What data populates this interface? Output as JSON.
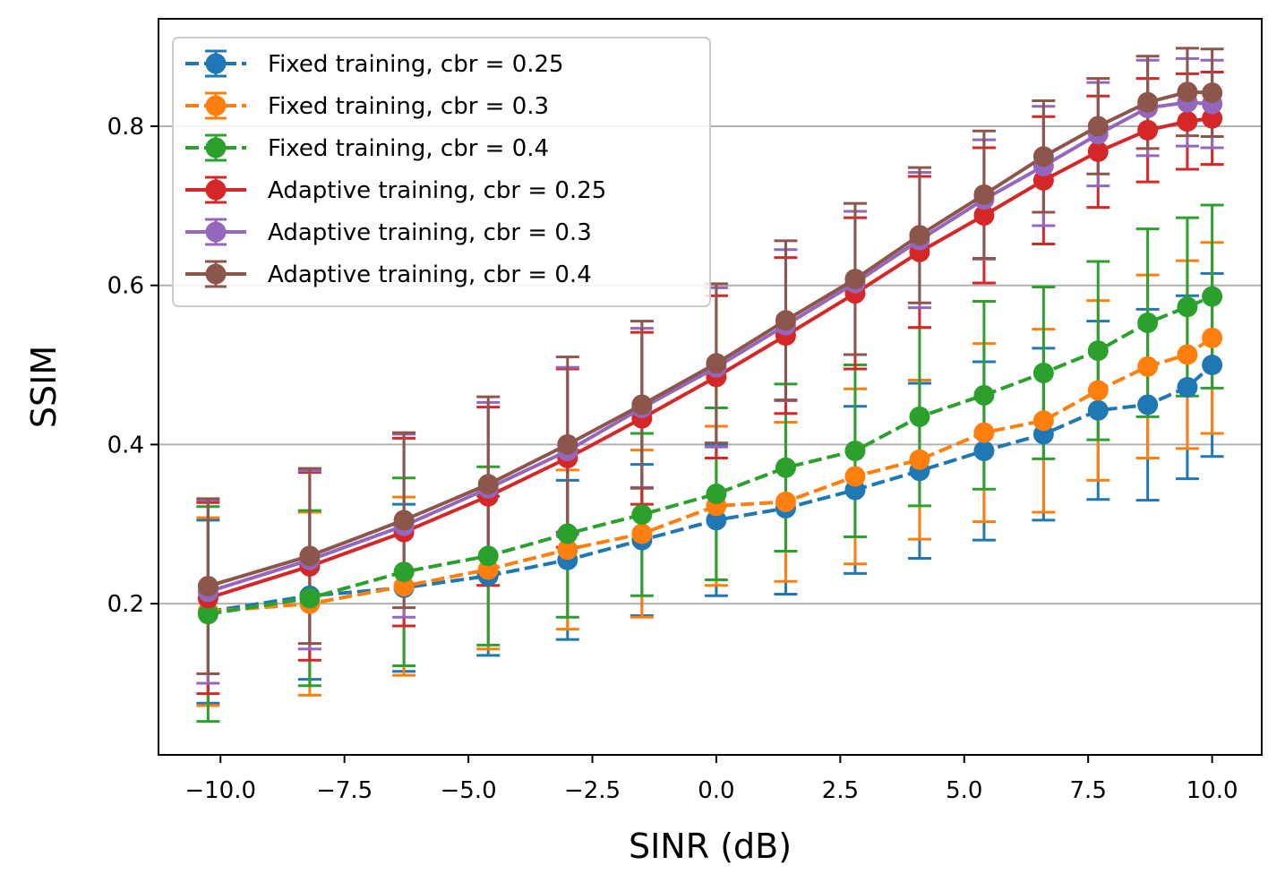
{
  "chart_data": {
    "type": "line",
    "title": "",
    "xlabel": "SINR (dB)",
    "ylabel": "SSIM",
    "xlim": [
      -11.25,
      11.0
    ],
    "ylim": [
      0.01,
      0.935
    ],
    "xticks": [
      -10.0,
      -7.5,
      -5.0,
      -2.5,
      0.0,
      2.5,
      5.0,
      7.5,
      10.0
    ],
    "xtick_labels": [
      "−10.0",
      "−7.5",
      "−5.0",
      "−2.5",
      "0.0",
      "2.5",
      "5.0",
      "7.5",
      "10.0"
    ],
    "yticks": [
      0.2,
      0.4,
      0.6,
      0.8
    ],
    "ytick_labels": [
      "0.2",
      "0.4",
      "0.6",
      "0.8"
    ],
    "grid": "y-major",
    "legend_position": "upper-left",
    "x": [
      -10.25,
      -8.2,
      -6.3,
      -4.6,
      -3.0,
      -1.5,
      0.0,
      1.4,
      2.8,
      4.1,
      5.4,
      6.6,
      7.7,
      8.7,
      9.5,
      10.0
    ],
    "series": [
      {
        "name": "Fixed training, cbr = 0.25",
        "color": "#1f77b4",
        "linestyle": "dashed",
        "y": [
          0.19,
          0.21,
          0.22,
          0.235,
          0.255,
          0.28,
          0.305,
          0.32,
          0.343,
          0.367,
          0.392,
          0.413,
          0.443,
          0.45,
          0.472,
          0.5
        ],
        "err": [
          0.115,
          0.105,
          0.105,
          0.1,
          0.1,
          0.095,
          0.095,
          0.108,
          0.105,
          0.11,
          0.112,
          0.108,
          0.112,
          0.12,
          0.115,
          0.115
        ]
      },
      {
        "name": "Fixed training, cbr = 0.3",
        "color": "#ff7f0e",
        "linestyle": "dashed",
        "y": [
          0.19,
          0.2,
          0.222,
          0.243,
          0.268,
          0.288,
          0.323,
          0.328,
          0.36,
          0.381,
          0.415,
          0.43,
          0.468,
          0.498,
          0.513,
          0.534
        ],
        "err": [
          0.118,
          0.115,
          0.112,
          0.1,
          0.1,
          0.105,
          0.1,
          0.1,
          0.11,
          0.1,
          0.112,
          0.115,
          0.113,
          0.115,
          0.118,
          0.12
        ]
      },
      {
        "name": "Fixed training, cbr = 0.4",
        "color": "#2ca02c",
        "linestyle": "dashed",
        "y": [
          0.187,
          0.207,
          0.24,
          0.26,
          0.288,
          0.312,
          0.338,
          0.371,
          0.392,
          0.435,
          0.462,
          0.49,
          0.518,
          0.553,
          0.573,
          0.586
        ],
        "err": [
          0.135,
          0.11,
          0.118,
          0.112,
          0.105,
          0.102,
          0.108,
          0.105,
          0.108,
          0.112,
          0.118,
          0.108,
          0.112,
          0.118,
          0.112,
          0.115
        ]
      },
      {
        "name": "Adaptive training, cbr = 0.25",
        "color": "#d62728",
        "linestyle": "solid",
        "y": [
          0.207,
          0.247,
          0.29,
          0.335,
          0.383,
          0.433,
          0.485,
          0.537,
          0.59,
          0.642,
          0.688,
          0.732,
          0.768,
          0.795,
          0.806,
          0.81
        ],
        "err": [
          0.12,
          0.118,
          0.118,
          0.112,
          0.112,
          0.108,
          0.102,
          0.098,
          0.095,
          0.095,
          0.085,
          0.08,
          0.07,
          0.065,
          0.06,
          0.058
        ]
      },
      {
        "name": "Adaptive training, cbr = 0.3",
        "color": "#9467bd",
        "linestyle": "solid",
        "y": [
          0.215,
          0.255,
          0.298,
          0.345,
          0.392,
          0.446,
          0.497,
          0.55,
          0.603,
          0.657,
          0.708,
          0.75,
          0.79,
          0.823,
          0.83,
          0.828
        ],
        "err": [
          0.115,
          0.112,
          0.115,
          0.108,
          0.105,
          0.1,
          0.1,
          0.095,
          0.09,
          0.085,
          0.075,
          0.075,
          0.065,
          0.06,
          0.055,
          0.055
        ]
      },
      {
        "name": "Adaptive training, cbr = 0.4",
        "color": "#8c564b",
        "linestyle": "solid",
        "y": [
          0.222,
          0.26,
          0.305,
          0.35,
          0.4,
          0.45,
          0.502,
          0.556,
          0.608,
          0.663,
          0.714,
          0.762,
          0.8,
          0.83,
          0.843,
          0.842
        ],
        "err": [
          0.11,
          0.11,
          0.11,
          0.11,
          0.11,
          0.105,
          0.1,
          0.1,
          0.095,
          0.085,
          0.08,
          0.07,
          0.06,
          0.058,
          0.055,
          0.055
        ]
      }
    ]
  }
}
